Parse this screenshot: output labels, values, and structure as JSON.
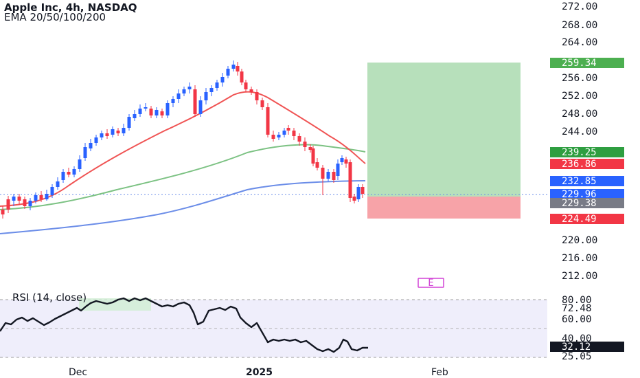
{
  "header": {
    "title": "Apple Inc, 4h, NASDAQ",
    "indicator": "EMA 20/50/100/200"
  },
  "rsi": {
    "label": "RSI (14, close)",
    "axis": [
      "80.00",
      "72.48",
      "60.00",
      "40.00",
      "25.05"
    ],
    "current": "32.12"
  },
  "price_axis": {
    "ticks": [
      "272.00",
      "268.00",
      "264.00",
      "256.00",
      "252.00",
      "248.00",
      "244.00",
      "220.00",
      "216.00",
      "212.00"
    ],
    "tags": {
      "target": "259.34",
      "ema_green": "239.25",
      "ema_red": "236.86",
      "ema_blue": "232.85",
      "last": "229.96",
      "entry": "229.38",
      "stop": "224.49"
    }
  },
  "time_axis": {
    "labels": [
      "Dec",
      "2025",
      "Feb"
    ]
  },
  "earnings_marker": "E",
  "colors": {
    "up": "#2962ff",
    "down": "#f23645",
    "ema_fast": "#f05454",
    "ema_mid": "#7cc283",
    "ema_slow": "#6b8de8",
    "profit_zone": "#b7e0bb",
    "loss_zone": "#f7a3a8",
    "rsi_band": "#efeefb"
  }
}
